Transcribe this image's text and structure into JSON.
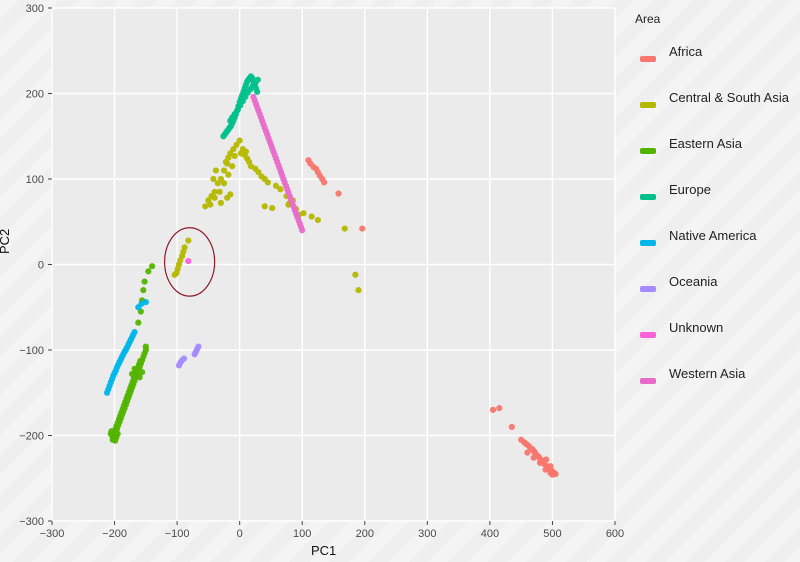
{
  "chart_data": {
    "type": "scatter",
    "title": "",
    "xlabel": "PC1",
    "ylabel": "PC2",
    "xlim": [
      -300,
      600
    ],
    "ylim": [
      -300,
      300
    ],
    "x_ticks": [
      -300,
      -200,
      -100,
      0,
      100,
      200,
      300,
      400,
      500,
      600
    ],
    "x_tick_labels": [
      "−300",
      "−200",
      "−100",
      "0",
      "100",
      "200",
      "300",
      "400",
      "500",
      "600"
    ],
    "y_ticks": [
      -300,
      -200,
      -100,
      0,
      100,
      200,
      300
    ],
    "y_tick_labels": [
      "−300",
      "−200",
      "−100",
      "0",
      "100",
      "200",
      "300"
    ],
    "grid": true,
    "legend_title": "Area",
    "legend_position": "right",
    "series": [
      {
        "name": "Africa",
        "color": "#F8766D",
        "points": [
          [
            405,
            -170
          ],
          [
            415,
            -168
          ],
          [
            435,
            -190
          ],
          [
            450,
            -205
          ],
          [
            455,
            -208
          ],
          [
            458,
            -210
          ],
          [
            462,
            -212
          ],
          [
            465,
            -215
          ],
          [
            468,
            -216
          ],
          [
            470,
            -218
          ],
          [
            472,
            -220
          ],
          [
            475,
            -223
          ],
          [
            478,
            -225
          ],
          [
            481,
            -228
          ],
          [
            484,
            -230
          ],
          [
            486,
            -233
          ],
          [
            490,
            -235
          ],
          [
            493,
            -238
          ],
          [
            496,
            -240
          ],
          [
            500,
            -242
          ],
          [
            503,
            -244
          ],
          [
            497,
            -244
          ],
          [
            489,
            -240
          ],
          [
            480,
            -232
          ],
          [
            470,
            -226
          ],
          [
            460,
            -220
          ],
          [
            490,
            -228
          ],
          [
            497,
            -236
          ],
          [
            505,
            -245
          ],
          [
            500,
            -246
          ],
          [
            110,
            122
          ],
          [
            113,
            118
          ],
          [
            118,
            114
          ],
          [
            122,
            112
          ],
          [
            125,
            108
          ],
          [
            128,
            104
          ],
          [
            132,
            100
          ],
          [
            135,
            96
          ],
          [
            158,
            83
          ],
          [
            196,
            42
          ]
        ]
      },
      {
        "name": "Central & South Asia",
        "color": "#B5B800",
        "points": [
          [
            -82,
            28
          ],
          [
            -88,
            20
          ],
          [
            -90,
            15
          ],
          [
            -92,
            10
          ],
          [
            -95,
            5
          ],
          [
            -97,
            0
          ],
          [
            -99,
            -5
          ],
          [
            -101,
            -10
          ],
          [
            -104,
            -12
          ],
          [
            -55,
            68
          ],
          [
            -50,
            75
          ],
          [
            -45,
            80
          ],
          [
            -40,
            85
          ],
          [
            -35,
            95
          ],
          [
            -30,
            100
          ],
          [
            -25,
            110
          ],
          [
            -22,
            120
          ],
          [
            -18,
            125
          ],
          [
            -15,
            130
          ],
          [
            -10,
            135
          ],
          [
            -5,
            140
          ],
          [
            0,
            145
          ],
          [
            5,
            135
          ],
          [
            8,
            128
          ],
          [
            12,
            124
          ],
          [
            15,
            120
          ],
          [
            -12,
            115
          ],
          [
            -18,
            105
          ],
          [
            -25,
            95
          ],
          [
            -32,
            85
          ],
          [
            -40,
            78
          ],
          [
            -47,
            70
          ],
          [
            -42,
            100
          ],
          [
            -38,
            110
          ],
          [
            -20,
            118
          ],
          [
            -8,
            127
          ],
          [
            2,
            130
          ],
          [
            10,
            132
          ],
          [
            18,
            115
          ],
          [
            25,
            112
          ],
          [
            30,
            108
          ],
          [
            35,
            103
          ],
          [
            40,
            100
          ],
          [
            45,
            96
          ],
          [
            58,
            92
          ],
          [
            65,
            88
          ],
          [
            75,
            80
          ],
          [
            80,
            72
          ],
          [
            90,
            65
          ],
          [
            102,
            60
          ],
          [
            115,
            56
          ],
          [
            125,
            52
          ],
          [
            -20,
            78
          ],
          [
            -15,
            82
          ],
          [
            -30,
            72
          ],
          [
            40,
            68
          ],
          [
            52,
            66
          ],
          [
            78,
            70
          ],
          [
            85,
            75
          ],
          [
            95,
            58
          ],
          [
            185,
            -12
          ],
          [
            190,
            -30
          ],
          [
            168,
            42
          ]
        ]
      },
      {
        "name": "Eastern Asia",
        "color": "#53B400",
        "points": [
          [
            -203,
            -205
          ],
          [
            -200,
            -200
          ],
          [
            -198,
            -196
          ],
          [
            -196,
            -192
          ],
          [
            -194,
            -188
          ],
          [
            -192,
            -184
          ],
          [
            -190,
            -180
          ],
          [
            -188,
            -176
          ],
          [
            -186,
            -172
          ],
          [
            -184,
            -168
          ],
          [
            -182,
            -164
          ],
          [
            -180,
            -160
          ],
          [
            -178,
            -156
          ],
          [
            -176,
            -152
          ],
          [
            -174,
            -148
          ],
          [
            -172,
            -144
          ],
          [
            -170,
            -140
          ],
          [
            -168,
            -136
          ],
          [
            -166,
            -132
          ],
          [
            -164,
            -128
          ],
          [
            -162,
            -124
          ],
          [
            -160,
            -120
          ],
          [
            -158,
            -116
          ],
          [
            -156,
            -112
          ],
          [
            -154,
            -108
          ],
          [
            -152,
            -104
          ],
          [
            -150,
            -100
          ],
          [
            -201,
            -198
          ],
          [
            -199,
            -193
          ],
          [
            -197,
            -189
          ],
          [
            -195,
            -185
          ],
          [
            -193,
            -181
          ],
          [
            -191,
            -177
          ],
          [
            -189,
            -173
          ],
          [
            -187,
            -169
          ],
          [
            -185,
            -165
          ],
          [
            -183,
            -161
          ],
          [
            -181,
            -157
          ],
          [
            -179,
            -153
          ],
          [
            -177,
            -149
          ],
          [
            -175,
            -145
          ],
          [
            -173,
            -141
          ],
          [
            -171,
            -137
          ],
          [
            -169,
            -133
          ],
          [
            -167,
            -129
          ],
          [
            -165,
            -125
          ],
          [
            -163,
            -121
          ],
          [
            -161,
            -117
          ],
          [
            -159,
            -113
          ],
          [
            -202,
            -203
          ],
          [
            -204,
            -200
          ],
          [
            -206,
            -198
          ],
          [
            -205,
            -195
          ],
          [
            -199,
            -206
          ],
          [
            -197,
            -202
          ],
          [
            -195,
            -198
          ],
          [
            -172,
            -128
          ],
          [
            -168,
            -122
          ],
          [
            -160,
            -132
          ],
          [
            -156,
            -126
          ],
          [
            -150,
            -96
          ],
          [
            -162,
            -68
          ],
          [
            -158,
            -55
          ],
          [
            -156,
            -42
          ],
          [
            -154,
            -30
          ],
          [
            -152,
            -20
          ],
          [
            -146,
            -8
          ],
          [
            -140,
            -2
          ]
        ]
      },
      {
        "name": "Europe",
        "color": "#00C08B",
        "points": [
          [
            -10,
            168
          ],
          [
            -8,
            172
          ],
          [
            -6,
            176
          ],
          [
            -4,
            180
          ],
          [
            -2,
            185
          ],
          [
            0,
            190
          ],
          [
            2,
            194
          ],
          [
            4,
            198
          ],
          [
            6,
            202
          ],
          [
            8,
            206
          ],
          [
            10,
            210
          ],
          [
            12,
            214
          ],
          [
            14,
            216
          ],
          [
            16,
            218
          ],
          [
            18,
            220
          ],
          [
            20,
            218
          ],
          [
            22,
            214
          ],
          [
            24,
            210
          ],
          [
            26,
            206
          ],
          [
            28,
            202
          ],
          [
            -12,
            165
          ],
          [
            -14,
            162
          ],
          [
            -16,
            160
          ],
          [
            -18,
            158
          ],
          [
            -20,
            156
          ],
          [
            -22,
            154
          ],
          [
            -24,
            152
          ],
          [
            -26,
            150
          ],
          [
            -15,
            168
          ],
          [
            -12,
            172
          ],
          [
            -8,
            176
          ],
          [
            -3,
            181
          ],
          [
            1,
            186
          ],
          [
            5,
            191
          ],
          [
            9,
            196
          ],
          [
            13,
            201
          ],
          [
            17,
            205
          ],
          [
            21,
            209
          ],
          [
            25,
            212
          ],
          [
            29,
            216
          ]
        ]
      },
      {
        "name": "Native America",
        "color": "#00B6EB",
        "points": [
          [
            -212,
            -150
          ],
          [
            -210,
            -146
          ],
          [
            -208,
            -142
          ],
          [
            -206,
            -138
          ],
          [
            -204,
            -134
          ],
          [
            -202,
            -130
          ],
          [
            -200,
            -127
          ],
          [
            -198,
            -124
          ],
          [
            -196,
            -120
          ],
          [
            -194,
            -117
          ],
          [
            -192,
            -114
          ],
          [
            -190,
            -111
          ],
          [
            -188,
            -108
          ],
          [
            -186,
            -105
          ],
          [
            -184,
            -102
          ],
          [
            -182,
            -100
          ],
          [
            -180,
            -97
          ],
          [
            -178,
            -94
          ],
          [
            -176,
            -91
          ],
          [
            -174,
            -88
          ],
          [
            -172,
            -85
          ],
          [
            -170,
            -82
          ],
          [
            -168,
            -79
          ],
          [
            -162,
            -50
          ],
          [
            -157,
            -46
          ],
          [
            -150,
            -44
          ]
        ]
      },
      {
        "name": "Oceania",
        "color": "#A58AFF",
        "points": [
          [
            -97,
            -118
          ],
          [
            -95,
            -115
          ],
          [
            -92,
            -112
          ],
          [
            -89,
            -110
          ],
          [
            -72,
            -105
          ],
          [
            -70,
            -102
          ],
          [
            -68,
            -99
          ],
          [
            -66,
            -96
          ]
        ]
      },
      {
        "name": "Unknown",
        "color": "#FB61D7",
        "points": [
          [
            -82,
            4
          ]
        ]
      },
      {
        "name": "Western Asia",
        "color": "#E86BCA",
        "points": [
          [
            22,
            196
          ],
          [
            24,
            192
          ],
          [
            26,
            188
          ],
          [
            28,
            184
          ],
          [
            30,
            180
          ],
          [
            32,
            176
          ],
          [
            34,
            172
          ],
          [
            36,
            168
          ],
          [
            38,
            164
          ],
          [
            40,
            160
          ],
          [
            42,
            156
          ],
          [
            44,
            152
          ],
          [
            46,
            148
          ],
          [
            48,
            144
          ],
          [
            50,
            140
          ],
          [
            52,
            136
          ],
          [
            54,
            132
          ],
          [
            56,
            128
          ],
          [
            58,
            124
          ],
          [
            60,
            120
          ],
          [
            62,
            116
          ],
          [
            64,
            112
          ],
          [
            66,
            108
          ],
          [
            68,
            104
          ],
          [
            70,
            100
          ],
          [
            72,
            96
          ],
          [
            74,
            92
          ],
          [
            76,
            88
          ],
          [
            78,
            84
          ],
          [
            80,
            80
          ],
          [
            82,
            76
          ],
          [
            84,
            72
          ],
          [
            86,
            68
          ],
          [
            88,
            64
          ],
          [
            90,
            60
          ],
          [
            92,
            56
          ],
          [
            94,
            52
          ],
          [
            96,
            48
          ],
          [
            98,
            44
          ],
          [
            100,
            40
          ]
        ]
      }
    ],
    "annotation": {
      "type": "circle",
      "center": [
        -80,
        3
      ],
      "radius": 40,
      "stroke_color": "#8E1B2B"
    }
  }
}
